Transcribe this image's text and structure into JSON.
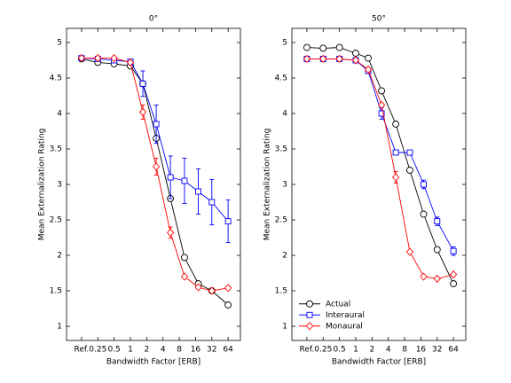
{
  "chart_data": [
    {
      "type": "line",
      "title": "0°",
      "xlabel": "Bandwidth Factor [ERB]",
      "ylabel": "Mean Externalization Rating",
      "xscale": "log",
      "xlim": [
        0.066,
        108
      ],
      "ylim": [
        0.8,
        5.2
      ],
      "xticks": [
        {
          "value": 0.125,
          "label": "Ref."
        },
        0.25,
        0.5,
        1,
        2,
        4,
        8,
        16,
        32,
        64
      ],
      "yticks": [
        1,
        1.5,
        2,
        2.5,
        3,
        3.5,
        4,
        4.5,
        5
      ],
      "x": [
        0.125,
        0.25,
        0.5,
        1,
        1.7,
        3,
        5.5,
        10,
        18,
        32,
        64
      ],
      "series": [
        {
          "name": "Actual",
          "color": "#000000",
          "marker": "circle",
          "values": [
            4.77,
            4.72,
            4.7,
            4.67,
            4.42,
            3.65,
            2.8,
            1.97,
            1.6,
            1.5,
            1.3
          ]
        },
        {
          "name": "Interaural",
          "color": "#0000ff",
          "marker": "square",
          "values": [
            4.78,
            4.77,
            4.75,
            4.73,
            4.42,
            3.85,
            3.1,
            3.05,
            2.9,
            2.75,
            2.48
          ],
          "errors": [
            null,
            null,
            null,
            null,
            0.18,
            0.27,
            0.3,
            0.32,
            0.32,
            0.32,
            0.3
          ]
        },
        {
          "name": "Monaural",
          "color": "#ff0000",
          "marker": "diamond",
          "values": [
            4.78,
            4.78,
            4.78,
            4.72,
            4.02,
            3.25,
            2.32,
            1.7,
            1.55,
            1.5,
            1.54
          ],
          "errors": [
            null,
            null,
            null,
            null,
            0.1,
            0.12,
            0.08,
            null,
            null,
            null,
            null
          ]
        }
      ]
    },
    {
      "type": "line",
      "title": "50°",
      "xlabel": "Bandwidth Factor [ERB]",
      "ylabel": "Mean Externalization Rating",
      "xscale": "log",
      "xlim": [
        0.066,
        108
      ],
      "ylim": [
        0.8,
        5.2
      ],
      "legend": "lower left",
      "xticks": [
        {
          "value": 0.125,
          "label": "Ref."
        },
        0.25,
        0.5,
        1,
        2,
        4,
        8,
        16,
        32,
        64
      ],
      "yticks": [
        1,
        1.5,
        2,
        2.5,
        3,
        3.5,
        4,
        4.5,
        5
      ],
      "x": [
        0.125,
        0.25,
        0.5,
        1,
        1.7,
        3,
        5.5,
        10,
        18,
        32,
        64
      ],
      "series": [
        {
          "name": "Actual",
          "color": "#000000",
          "marker": "circle",
          "values": [
            4.93,
            4.92,
            4.93,
            4.85,
            4.78,
            4.32,
            3.85,
            3.2,
            2.58,
            2.08,
            1.6
          ]
        },
        {
          "name": "Interaural",
          "color": "#0000ff",
          "marker": "square",
          "values": [
            4.77,
            4.77,
            4.77,
            4.75,
            4.6,
            4.0,
            3.45,
            3.45,
            3.0,
            2.48,
            2.06
          ],
          "errors": [
            null,
            null,
            null,
            null,
            null,
            0.08,
            null,
            null,
            0.06,
            0.06,
            0.06
          ]
        },
        {
          "name": "Monaural",
          "color": "#ff0000",
          "marker": "diamond",
          "values": [
            4.77,
            4.77,
            4.77,
            4.75,
            4.62,
            4.12,
            3.1,
            2.05,
            1.7,
            1.67,
            1.73
          ],
          "errors": [
            null,
            null,
            null,
            null,
            null,
            null,
            0.08,
            null,
            null,
            null,
            null
          ]
        }
      ]
    }
  ]
}
